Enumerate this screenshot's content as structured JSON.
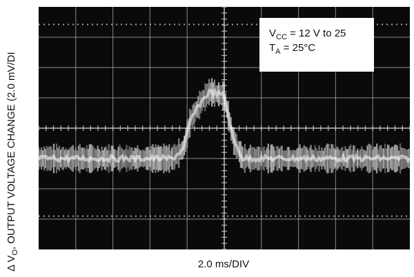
{
  "chart_data": {
    "type": "line",
    "title": "",
    "xlabel": "2.0 ms/DIV",
    "ylabel": {
      "prefix": "Δ V",
      "subscript": "O",
      "suffix": ", OUTPUT VOLTAGE CHANGE (2.0 mV/DI"
    },
    "x_divisions": 10,
    "y_divisions": 8,
    "grid": true,
    "annotation": {
      "line1": {
        "prefix": "V",
        "subscript": "CC",
        "suffix": " = 12 V to 25"
      },
      "line2": {
        "prefix": "T",
        "subscript": "A",
        "suffix": " = 25°C"
      }
    },
    "series": [
      {
        "x": [
          0,
          3.6,
          3.9,
          4.1,
          4.4,
          4.6,
          4.9,
          5.0,
          5.25,
          5.5,
          10
        ],
        "y": [
          0,
          0,
          0.3,
          1.3,
          1.9,
          2.2,
          2.1,
          2.05,
          0.6,
          0,
          0
        ]
      }
    ],
    "colors": {
      "background": "#0a0a0a",
      "grid": "#c8c8c8",
      "trace": "#ececec"
    }
  }
}
